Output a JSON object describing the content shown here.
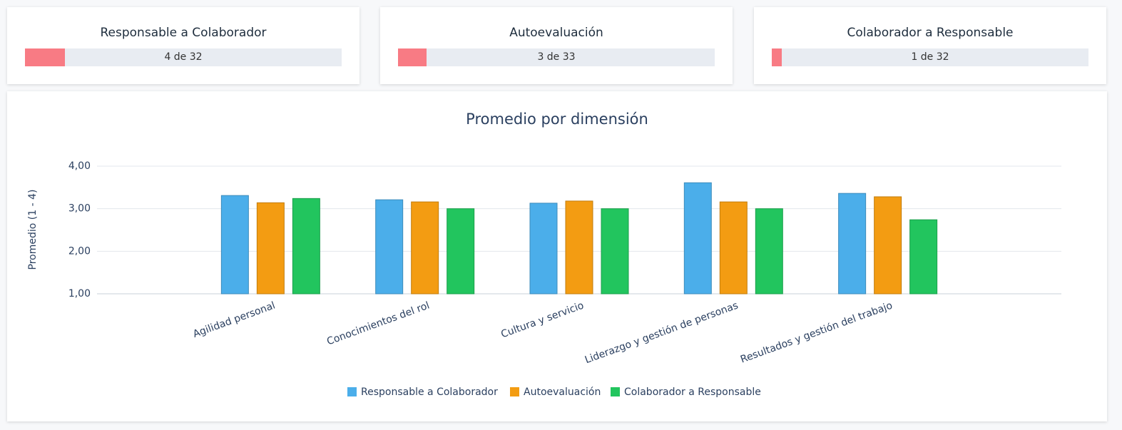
{
  "cards": [
    {
      "title": "Responsable a Colaborador",
      "label": "4 de 32",
      "done": 4,
      "total": 32
    },
    {
      "title": "Autoevaluación",
      "label": "3 de 33",
      "done": 3,
      "total": 33
    },
    {
      "title": "Colaborador a Responsable",
      "label": "1 de 32",
      "done": 1,
      "total": 32
    }
  ],
  "progress_color": "#f87b84",
  "chart_data": {
    "type": "bar",
    "title": "Promedio por dimensión",
    "y_label": "Promedio (1 - 4)",
    "categories": [
      "Agilidad personal",
      "Conocimientos del rol",
      "Cultura y servicio",
      "Liderazgo y gestión de personas",
      "Resultados y gestión del trabajo"
    ],
    "series": [
      {
        "name": "Responsable a Colaborador",
        "color": "#4baeea",
        "values": [
          3.31,
          3.21,
          3.13,
          3.61,
          3.36
        ]
      },
      {
        "name": "Autoevaluación",
        "color": "#f39c12",
        "values": [
          3.14,
          3.16,
          3.18,
          3.16,
          3.28
        ]
      },
      {
        "name": "Colaborador a Responsable",
        "color": "#22c55e",
        "values": [
          3.24,
          3.0,
          3.0,
          3.0,
          2.74
        ]
      }
    ],
    "ylim": [
      1,
      4
    ],
    "yticks": [
      {
        "value": 1,
        "label": "1,00"
      },
      {
        "value": 2,
        "label": "2,00"
      },
      {
        "value": 3,
        "label": "3,00"
      },
      {
        "value": 4,
        "label": "4,00"
      }
    ],
    "grid": true
  }
}
